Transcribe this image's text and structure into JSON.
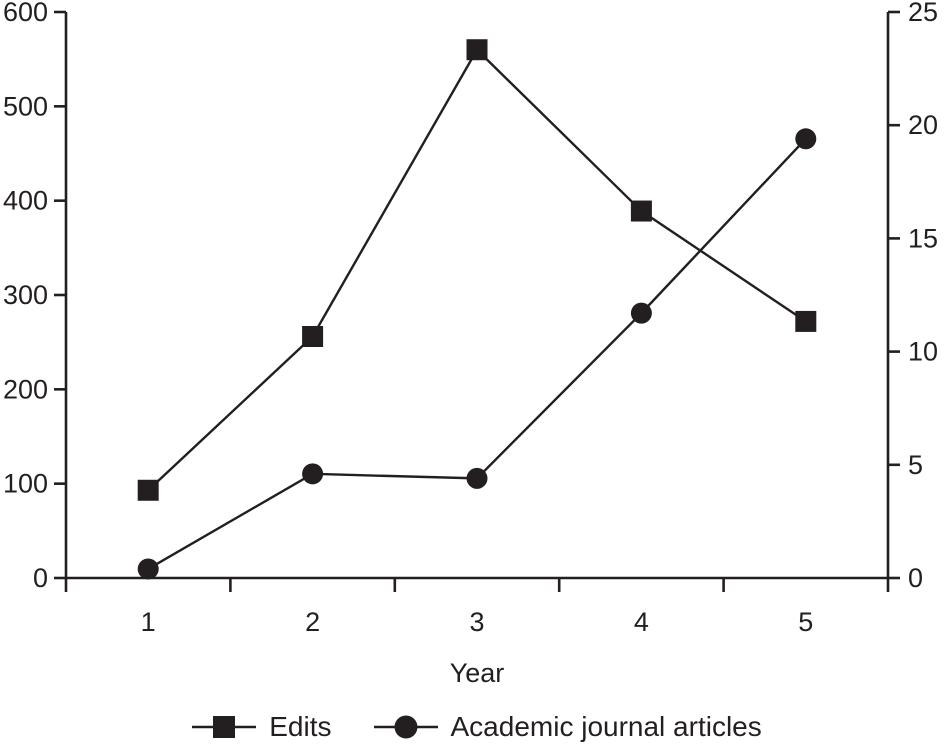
{
  "chart_data": {
    "type": "line",
    "title": "",
    "xlabel": "Year",
    "categories": [
      "1",
      "2",
      "3",
      "4",
      "5"
    ],
    "series": [
      {
        "name": "Edits",
        "axis": "left",
        "marker": "square",
        "values": [
          93,
          256,
          560,
          389,
          272
        ]
      },
      {
        "name": "Academic journal articles",
        "axis": "right",
        "marker": "circle",
        "values": [
          0.4,
          4.6,
          4.4,
          11.7,
          19.4
        ]
      }
    ],
    "left_axis": {
      "range": [
        0,
        600
      ],
      "ticks": [
        0,
        100,
        200,
        300,
        400,
        500,
        600
      ]
    },
    "right_axis": {
      "range": [
        0,
        25
      ],
      "ticks": [
        0,
        5,
        10,
        15,
        20,
        25
      ]
    },
    "grid": false,
    "legend_position": "bottom"
  },
  "colors": {
    "ink": "#231f20",
    "background": "#ffffff"
  }
}
